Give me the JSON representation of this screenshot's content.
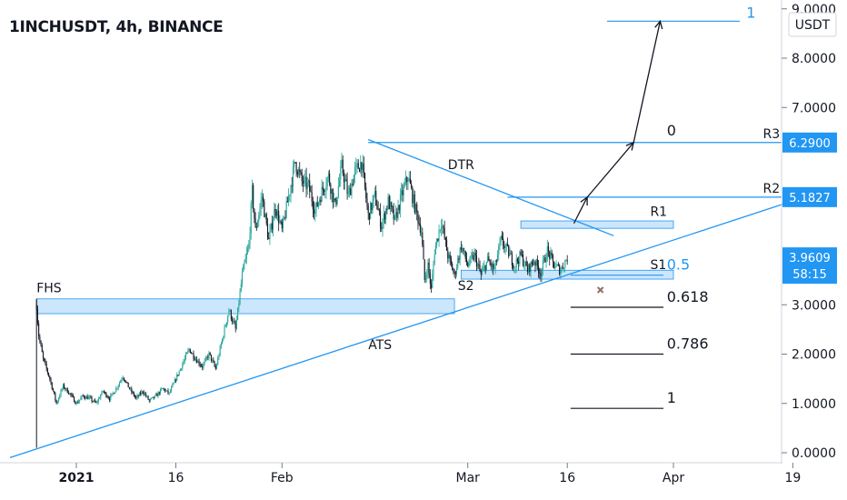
{
  "header": {
    "ticker": "1INCHUSDT, 4h, BINANCE"
  },
  "colors": {
    "bull": "#26a69a",
    "bear": "#131722",
    "line": "#2196f3",
    "zone": "#bbdefb",
    "tag": "#2196f3",
    "fib_blue": "#2196f3",
    "fib_dark": "#131722",
    "cross": "#8d6e63"
  },
  "chart_data": {
    "type": "candlestick",
    "title": "1INCHUSDT, 4h, BINANCE",
    "ylim": [
      0,
      9
    ],
    "y_ticks": [
      "0.0000",
      "1.0000",
      "2.0000",
      "3.0000",
      "7.0000",
      "8.0000",
      "9.0000"
    ],
    "currency_label": "USDT",
    "x_ticks": [
      {
        "label": "2021",
        "day": 0
      },
      {
        "label": "16",
        "day": 15
      },
      {
        "label": "Feb",
        "day": 31
      },
      {
        "label": "Mar",
        "day": 59
      },
      {
        "label": "16",
        "day": 74
      },
      {
        "label": "Apr",
        "day": 90
      },
      {
        "label": "19",
        "day": 108
      }
    ],
    "price_anchors": [
      [
        -6.0,
        3.0
      ],
      [
        -5.7,
        2.4
      ],
      [
        -5,
        1.9
      ],
      [
        -4,
        1.5
      ],
      [
        -3,
        1.0
      ],
      [
        -2,
        1.35
      ],
      [
        -1,
        1.2
      ],
      [
        0,
        1.0
      ],
      [
        1,
        1.15
      ],
      [
        2,
        1.1
      ],
      [
        3,
        1.0
      ],
      [
        4,
        1.25
      ],
      [
        5,
        1.1
      ],
      [
        6,
        1.3
      ],
      [
        7,
        1.55
      ],
      [
        8,
        1.3
      ],
      [
        9,
        1.1
      ],
      [
        10,
        1.25
      ],
      [
        11,
        1.05
      ],
      [
        12,
        1.15
      ],
      [
        13,
        1.3
      ],
      [
        14,
        1.2
      ],
      [
        15,
        1.5
      ],
      [
        16,
        1.8
      ],
      [
        17,
        2.1
      ],
      [
        18,
        1.9
      ],
      [
        19,
        1.75
      ],
      [
        20,
        2.0
      ],
      [
        21,
        1.7
      ],
      [
        22,
        2.3
      ],
      [
        23,
        2.9
      ],
      [
        24,
        2.5
      ],
      [
        25,
        3.6
      ],
      [
        26,
        4.2
      ],
      [
        26.5,
        5.3
      ],
      [
        27,
        4.5
      ],
      [
        28,
        5.2
      ],
      [
        29,
        4.3
      ],
      [
        30,
        5.0
      ],
      [
        31,
        4.5
      ],
      [
        32,
        5.2
      ],
      [
        33,
        5.9
      ],
      [
        34,
        5.5
      ],
      [
        35,
        5.4
      ],
      [
        36,
        4.9
      ],
      [
        37,
        5.3
      ],
      [
        38,
        5.6
      ],
      [
        39,
        5.0
      ],
      [
        40,
        5.8
      ],
      [
        41,
        5.2
      ],
      [
        42,
        5.7
      ],
      [
        43,
        5.9
      ],
      [
        44,
        4.8
      ],
      [
        45,
        5.2
      ],
      [
        46,
        4.6
      ],
      [
        47,
        5.1
      ],
      [
        48,
        4.7
      ],
      [
        49,
        5.2
      ],
      [
        50,
        5.6
      ],
      [
        51,
        5.0
      ],
      [
        52,
        4.5
      ],
      [
        52.5,
        3.5
      ],
      [
        53,
        3.8
      ],
      [
        53.5,
        3.3
      ],
      [
        54,
        4.1
      ],
      [
        55,
        4.7
      ],
      [
        56,
        4.0
      ],
      [
        57,
        3.6
      ],
      [
        58,
        4.2
      ],
      [
        59,
        3.8
      ],
      [
        60,
        4.0
      ],
      [
        61,
        3.6
      ],
      [
        62,
        3.9
      ],
      [
        63,
        3.7
      ],
      [
        64,
        4.3
      ],
      [
        65,
        4.1
      ],
      [
        66,
        3.8
      ],
      [
        67,
        4.0
      ],
      [
        68,
        3.7
      ],
      [
        69,
        3.9
      ],
      [
        70,
        3.65
      ],
      [
        71,
        4.1
      ],
      [
        72,
        3.8
      ],
      [
        73,
        3.7
      ],
      [
        74,
        3.96
      ]
    ],
    "levels": [
      {
        "label": "R3",
        "value": 6.29,
        "tag": "6.2900"
      },
      {
        "label": "R2",
        "value": 5.1827,
        "tag": "5.1827"
      },
      {
        "label": "R1",
        "value": 4.6
      },
      {
        "label": "S1",
        "value": 3.6
      },
      {
        "label": "S2",
        "value": 3.62
      }
    ],
    "current_price": {
      "value": 3.9609,
      "tag": "3.9609",
      "countdown": "58:15"
    },
    "annotations": [
      "FHS",
      "DTR",
      "ATS",
      "R1",
      "R2",
      "R3",
      "S1",
      "S2"
    ],
    "fib_levels": [
      {
        "label": "1",
        "value": 8.75,
        "color": "blue"
      },
      {
        "label": "0",
        "value": 6.29,
        "color": "dark"
      },
      {
        "label": "0.5",
        "value": 3.6,
        "color": "blue"
      },
      {
        "label": "0.618",
        "value": 2.95,
        "color": "dark"
      },
      {
        "label": "0.786",
        "value": 2.0,
        "color": "dark"
      },
      {
        "label": "1",
        "value": 0.9,
        "color": "dark"
      }
    ],
    "zones": [
      {
        "name": "fhs-zone",
        "x0": -6,
        "x1": 57,
        "y0": 2.82,
        "y1": 3.12
      },
      {
        "name": "s2-zone",
        "x0": 58,
        "x1": 90,
        "y0": 3.52,
        "y1": 3.7
      },
      {
        "name": "r1-zone",
        "x0": 67,
        "x1": 90,
        "y0": 4.55,
        "y1": 4.7
      }
    ],
    "trendlines": [
      {
        "name": "ascending-trendline",
        "from": [
          -10,
          -0.1
        ],
        "to": [
          109,
          5.15
        ]
      },
      {
        "name": "descending-trendline",
        "from": [
          44,
          6.35
        ],
        "to": [
          81,
          4.4
        ]
      }
    ],
    "projection_path": [
      [
        75,
        4.65
      ],
      [
        77,
        5.18
      ],
      [
        84,
        6.29
      ],
      [
        88,
        8.75
      ]
    ]
  }
}
